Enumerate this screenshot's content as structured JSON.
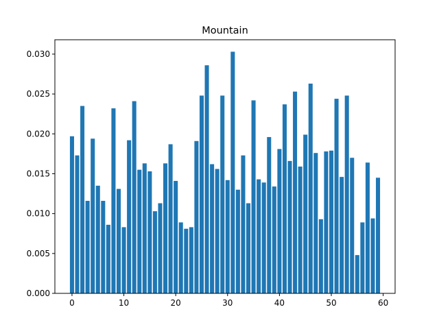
{
  "chart_data": {
    "type": "bar",
    "title": "Mountain",
    "xlabel": "",
    "ylabel": "",
    "xlim": [
      -3.3,
      62.3
    ],
    "ylim": [
      0,
      0.0318
    ],
    "xticks": [
      0,
      10,
      20,
      30,
      40,
      50,
      60
    ],
    "yticks": [
      0.0,
      0.005,
      0.01,
      0.015,
      0.02,
      0.025,
      0.03
    ],
    "ytick_labels": [
      "0.000",
      "0.005",
      "0.010",
      "0.015",
      "0.020",
      "0.025",
      "0.030"
    ],
    "bar_color": "#1f77b4",
    "bar_width": 0.8,
    "grid": false,
    "legend": "none",
    "x": [
      0,
      1,
      2,
      3,
      4,
      5,
      6,
      7,
      8,
      9,
      10,
      11,
      12,
      13,
      14,
      15,
      16,
      17,
      18,
      19,
      20,
      21,
      22,
      23,
      24,
      25,
      26,
      27,
      28,
      29,
      30,
      31,
      32,
      33,
      34,
      35,
      36,
      37,
      38,
      39,
      40,
      41,
      42,
      43,
      44,
      45,
      46,
      47,
      48,
      49,
      50,
      51,
      52,
      53,
      54,
      55,
      56,
      57,
      58,
      59
    ],
    "values": [
      0.0197,
      0.0173,
      0.0235,
      0.0116,
      0.0194,
      0.0135,
      0.0116,
      0.0086,
      0.0232,
      0.0131,
      0.0083,
      0.0192,
      0.0241,
      0.0155,
      0.0163,
      0.0153,
      0.0103,
      0.0113,
      0.0163,
      0.0187,
      0.0141,
      0.0089,
      0.0081,
      0.0083,
      0.0191,
      0.0248,
      0.0286,
      0.0162,
      0.0156,
      0.0248,
      0.0142,
      0.0303,
      0.013,
      0.0173,
      0.0113,
      0.0242,
      0.0143,
      0.0139,
      0.0196,
      0.0134,
      0.0181,
      0.0237,
      0.0166,
      0.0253,
      0.0159,
      0.0199,
      0.0263,
      0.0176,
      0.0093,
      0.0178,
      0.0179,
      0.0244,
      0.0146,
      0.0248,
      0.017,
      0.0048,
      0.0089,
      0.0164,
      0.0094,
      0.0145
    ]
  }
}
